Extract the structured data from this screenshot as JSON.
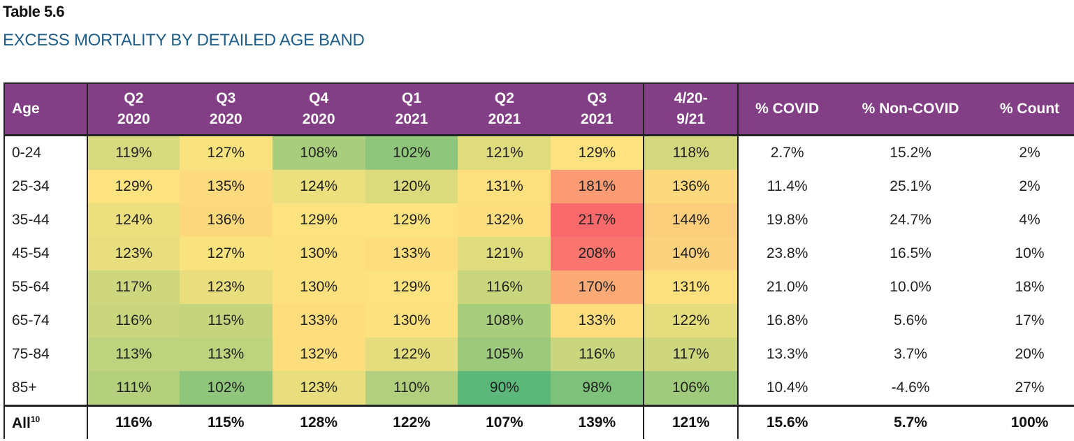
{
  "table_label": "Table 5.6",
  "title": "EXCESS MORTALITY BY DETAILED AGE BAND",
  "headers": [
    {
      "line1": "Age",
      "line2": ""
    },
    {
      "line1": "Q2",
      "line2": "2020"
    },
    {
      "line1": "Q3",
      "line2": "2020"
    },
    {
      "line1": "Q4",
      "line2": "2020"
    },
    {
      "line1": "Q1",
      "line2": "2021"
    },
    {
      "line1": "Q2",
      "line2": "2021"
    },
    {
      "line1": "Q3",
      "line2": "2021"
    },
    {
      "line1": "4/20-",
      "line2": "9/21"
    },
    {
      "line1": "% COVID",
      "line2": ""
    },
    {
      "line1": "% Non-COVID",
      "line2": ""
    },
    {
      "line1": "% Count",
      "line2": ""
    }
  ],
  "colors": {
    "header_bg": "#823f86",
    "title": "#1f5f8b",
    "heat_low": "#5cb87a",
    "heat_mid": "#fde47f",
    "heat_high": "#f8696b"
  },
  "rows": [
    {
      "age": "0-24",
      "cells": [
        "119%",
        "127%",
        "108%",
        "102%",
        "121%",
        "129%",
        "118%"
      ],
      "values": [
        119,
        127,
        108,
        102,
        121,
        129,
        118
      ],
      "covid": "2.7%",
      "noncovid": "15.2%",
      "count": "2%"
    },
    {
      "age": "25-34",
      "cells": [
        "129%",
        "135%",
        "124%",
        "120%",
        "131%",
        "181%",
        "136%"
      ],
      "values": [
        129,
        135,
        124,
        120,
        131,
        181,
        136
      ],
      "covid": "11.4%",
      "noncovid": "25.1%",
      "count": "2%"
    },
    {
      "age": "35-44",
      "cells": [
        "124%",
        "136%",
        "129%",
        "129%",
        "132%",
        "217%",
        "144%"
      ],
      "values": [
        124,
        136,
        129,
        129,
        132,
        217,
        144
      ],
      "covid": "19.8%",
      "noncovid": "24.7%",
      "count": "4%"
    },
    {
      "age": "45-54",
      "cells": [
        "123%",
        "127%",
        "130%",
        "133%",
        "121%",
        "208%",
        "140%"
      ],
      "values": [
        123,
        127,
        130,
        133,
        121,
        208,
        140
      ],
      "covid": "23.8%",
      "noncovid": "16.5%",
      "count": "10%"
    },
    {
      "age": "55-64",
      "cells": [
        "117%",
        "123%",
        "130%",
        "129%",
        "116%",
        "170%",
        "131%"
      ],
      "values": [
        117,
        123,
        130,
        129,
        116,
        170,
        131
      ],
      "covid": "21.0%",
      "noncovid": "10.0%",
      "count": "18%"
    },
    {
      "age": "65-74",
      "cells": [
        "116%",
        "115%",
        "133%",
        "130%",
        "108%",
        "133%",
        "122%"
      ],
      "values": [
        116,
        115,
        133,
        130,
        108,
        133,
        122
      ],
      "covid": "16.8%",
      "noncovid": "5.6%",
      "count": "17%"
    },
    {
      "age": "75-84",
      "cells": [
        "113%",
        "113%",
        "132%",
        "122%",
        "105%",
        "116%",
        "117%"
      ],
      "values": [
        113,
        113,
        132,
        122,
        105,
        116,
        117
      ],
      "covid": "13.3%",
      "noncovid": "3.7%",
      "count": "20%"
    },
    {
      "age": "85+",
      "cells": [
        "111%",
        "102%",
        "123%",
        "110%",
        "90%",
        "98%",
        "106%"
      ],
      "values": [
        111,
        102,
        123,
        110,
        90,
        98,
        106
      ],
      "covid": "10.4%",
      "noncovid": "-4.6%",
      "count": "27%"
    }
  ],
  "total": {
    "age": "All",
    "footnote": "10",
    "cells": [
      "116%",
      "115%",
      "128%",
      "122%",
      "107%",
      "139%",
      "121%"
    ],
    "covid": "15.6%",
    "noncovid": "5.7%",
    "count": "100%"
  }
}
